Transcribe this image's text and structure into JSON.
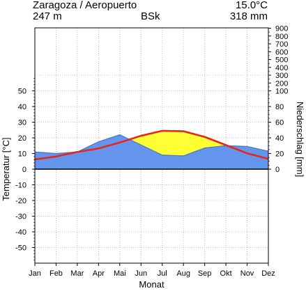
{
  "header": {
    "station": "Zaragoza / Aeropuerto",
    "mean_temp": "15.0°C",
    "elevation": "247 m",
    "climate_class": "BSk",
    "annual_precip": "318 mm"
  },
  "chart_data": {
    "type": "area",
    "title": "Zaragoza / Aeropuerto",
    "xlabel": "Monat",
    "ylabel_left": "Temperatur [°C]",
    "ylabel_right": "Niederschlag [mm]",
    "categories": [
      "Jan",
      "Feb",
      "Mar",
      "Apr",
      "Mai",
      "Jun",
      "Jul",
      "Aug",
      "Sep",
      "Okt",
      "Nov",
      "Dez"
    ],
    "y_left_ticks": [
      50,
      40,
      30,
      20,
      10,
      0,
      -10,
      -20,
      -30,
      -40,
      -50
    ],
    "y_right_ticks": [
      900,
      800,
      700,
      600,
      500,
      400,
      300,
      200,
      100,
      80,
      60,
      40,
      20,
      0
    ],
    "ylim_temp": [
      -60,
      60
    ],
    "grid": true,
    "series": [
      {
        "name": "Temperatur",
        "unit": "°C",
        "color": "#e8251c",
        "values": [
          6.2,
          8.1,
          11.0,
          13.2,
          17.0,
          21.3,
          24.5,
          24.2,
          20.6,
          15.4,
          10.1,
          6.6
        ]
      },
      {
        "name": "Niederschlag",
        "unit": "mm",
        "color": "#6495ed",
        "values": [
          22,
          20,
          22,
          35,
          44,
          31,
          18,
          17,
          27,
          30,
          29,
          23
        ]
      }
    ],
    "colors": {
      "humid": "#6495ed",
      "arid": "#ffff33",
      "zero_line": "#000000",
      "grid": "#b0b0b0"
    }
  }
}
